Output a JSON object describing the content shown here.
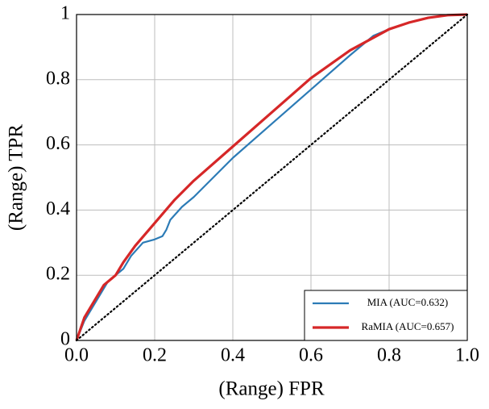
{
  "chart_data": {
    "type": "line",
    "xlabel": "(Range) FPR",
    "ylabel": "(Range) TPR",
    "xlim": [
      0,
      1
    ],
    "ylim": [
      0,
      1
    ],
    "xticks": [
      {
        "value": 0,
        "label": "0.0"
      },
      0.2,
      0.4,
      0.6,
      0.8,
      {
        "value": 1,
        "label": "1.0"
      }
    ],
    "yticks": [
      0,
      0.2,
      0.4,
      0.6,
      0.8,
      1
    ],
    "grid": true,
    "legend": "lower right",
    "series": [
      {
        "name": "MIA (AUC=0.632)",
        "color": "#2c7bb6",
        "width": 2.2,
        "x": [
          0,
          0.02,
          0.05,
          0.08,
          0.1,
          0.12,
          0.14,
          0.17,
          0.2,
          0.22,
          0.23,
          0.24,
          0.27,
          0.3,
          0.4,
          0.5,
          0.6,
          0.7,
          0.76,
          0.8,
          0.85,
          0.9,
          0.95,
          1
        ],
        "values": [
          0,
          0.06,
          0.12,
          0.18,
          0.2,
          0.22,
          0.26,
          0.3,
          0.31,
          0.32,
          0.34,
          0.37,
          0.41,
          0.44,
          0.56,
          0.665,
          0.77,
          0.875,
          0.935,
          0.955,
          0.975,
          0.99,
          0.998,
          1
        ]
      },
      {
        "name": "RaMIA (AUC=0.657)",
        "color": "#d62728",
        "width": 3.2,
        "x": [
          0,
          0.02,
          0.05,
          0.07,
          0.09,
          0.1,
          0.12,
          0.15,
          0.2,
          0.25,
          0.3,
          0.4,
          0.5,
          0.6,
          0.7,
          0.8,
          0.85,
          0.9,
          0.95,
          1
        ],
        "values": [
          0,
          0.07,
          0.13,
          0.17,
          0.19,
          0.2,
          0.24,
          0.29,
          0.36,
          0.43,
          0.49,
          0.595,
          0.7,
          0.805,
          0.89,
          0.955,
          0.975,
          0.99,
          0.998,
          1
        ]
      },
      {
        "color": "#000000",
        "width": 2.2,
        "dash": "dotted",
        "x": [
          0,
          1
        ],
        "values": [
          0,
          1
        ]
      }
    ]
  }
}
